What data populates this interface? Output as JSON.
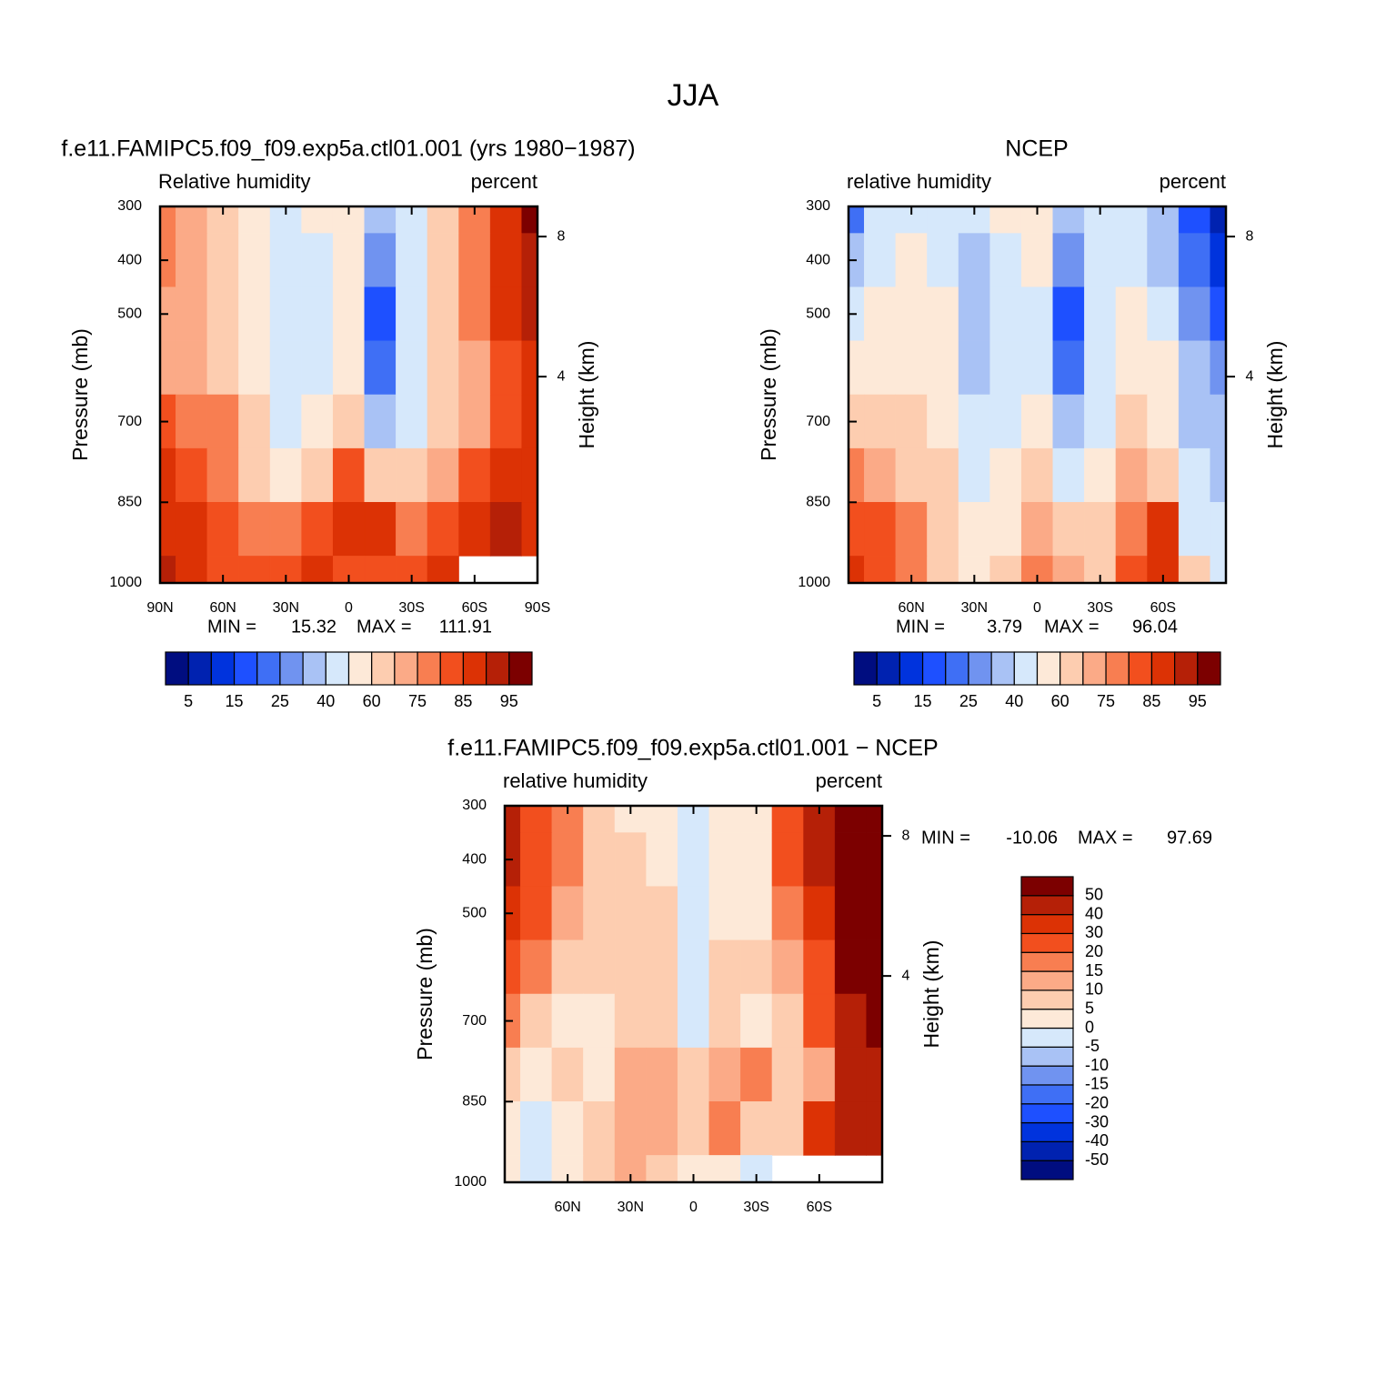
{
  "title": "JJA",
  "chart_data": [
    {
      "type": "contour",
      "title": "f.e11.FAMIPC5.f09_f09.exp5a.ctl01.001 (yrs 1980−1987)",
      "left_label": "Relative humidity",
      "right_label": "percent",
      "ylabel": "Pressure (mb)",
      "y2label": "Height (km)",
      "x": [
        90,
        75,
        60,
        45,
        30,
        15,
        0,
        -15,
        -30,
        -45,
        -60,
        -75,
        -90
      ],
      "y": [
        300,
        400,
        500,
        600,
        700,
        800,
        900,
        1000
      ],
      "values": [
        [
          75,
          70,
          65,
          55,
          45,
          50,
          55,
          35,
          45,
          65,
          75,
          85,
          97
        ],
        [
          75,
          72,
          65,
          55,
          42,
          48,
          55,
          25,
          45,
          65,
          75,
          85,
          92
        ],
        [
          72,
          70,
          65,
          55,
          42,
          45,
          55,
          18,
          40,
          65,
          75,
          85,
          90
        ],
        [
          72,
          70,
          68,
          58,
          45,
          45,
          55,
          22,
          40,
          62,
          72,
          82,
          88
        ],
        [
          80,
          75,
          75,
          62,
          48,
          50,
          65,
          35,
          45,
          60,
          72,
          80,
          88
        ],
        [
          85,
          80,
          78,
          68,
          58,
          62,
          80,
          65,
          60,
          70,
          80,
          85,
          88
        ],
        [
          88,
          85,
          82,
          75,
          75,
          80,
          88,
          85,
          78,
          80,
          88,
          92,
          88
        ],
        [
          90,
          85,
          80,
          80,
          82,
          85,
          82,
          80,
          82,
          85,
          null,
          null,
          null
        ]
      ],
      "xlim": [
        90,
        -90
      ],
      "ylim": [
        1000,
        300
      ],
      "xticks": [
        {
          "value": 90,
          "label": "90N"
        },
        {
          "value": 60,
          "label": "60N"
        },
        {
          "value": 30,
          "label": "30N"
        },
        0,
        {
          "value": -30,
          "label": "30S"
        },
        {
          "value": -60,
          "label": "60S"
        },
        {
          "value": -90,
          "label": "90S"
        }
      ],
      "yticks": [
        300,
        400,
        500,
        700,
        850,
        1000
      ],
      "y2ticks": [
        8,
        4
      ],
      "stats": [
        {
          "label": "MIN =",
          "value": 15.32
        },
        {
          "label": "MAX =",
          "value": 111.91
        }
      ],
      "colorbar": {
        "orientation": "horizontal",
        "levels": [
          5,
          10,
          15,
          20,
          25,
          30,
          40,
          50,
          60,
          70,
          75,
          80,
          85,
          90,
          95
        ],
        "label_stride": 2,
        "colors": [
          "#000d80",
          "#0022b0",
          "#0033dd",
          "#1e50ff",
          "#3f6ff5",
          "#7093f0",
          "#a9c2f5",
          "#d6e8fb",
          "#fde9d8",
          "#fdcdb0",
          "#fbaa87",
          "#f87e51",
          "#f24f1e",
          "#dc3205",
          "#b52007",
          "#7c0000"
        ]
      }
    },
    {
      "type": "contour",
      "title": "NCEP",
      "left_label": "relative humidity",
      "right_label": "percent",
      "ylabel": "Pressure (mb)",
      "y2label": "Height (km)",
      "x": [
        90,
        75,
        60,
        45,
        30,
        15,
        0,
        -15,
        -30,
        -45,
        -60,
        -75,
        -90
      ],
      "y": [
        300,
        400,
        500,
        600,
        700,
        800,
        900,
        1000
      ],
      "values": [
        [
          20,
          40,
          45,
          45,
          45,
          50,
          55,
          30,
          45,
          45,
          30,
          15,
          8
        ],
        [
          30,
          45,
          50,
          45,
          35,
          45,
          50,
          25,
          45,
          45,
          35,
          20,
          10
        ],
        [
          45,
          50,
          55,
          50,
          35,
          45,
          45,
          18,
          45,
          50,
          40,
          25,
          15
        ],
        [
          55,
          55,
          55,
          50,
          35,
          40,
          45,
          22,
          40,
          55,
          50,
          30,
          25
        ],
        [
          65,
          60,
          60,
          55,
          40,
          40,
          55,
          30,
          45,
          60,
          55,
          35,
          30
        ],
        [
          75,
          70,
          65,
          60,
          45,
          50,
          65,
          45,
          55,
          70,
          65,
          40,
          35
        ],
        [
          80,
          80,
          75,
          60,
          50,
          55,
          70,
          65,
          60,
          75,
          85,
          45,
          40
        ],
        [
          85,
          80,
          75,
          60,
          55,
          60,
          75,
          70,
          60,
          80,
          88,
          60,
          40
        ]
      ],
      "xlim": [
        90,
        -90
      ],
      "ylim": [
        1000,
        300
      ],
      "xticks": [
        {
          "value": 60,
          "label": "60N"
        },
        {
          "value": 30,
          "label": "30N"
        },
        0,
        {
          "value": -30,
          "label": "30S"
        },
        {
          "value": -60,
          "label": "60S"
        }
      ],
      "yticks": [
        300,
        400,
        500,
        700,
        850,
        1000
      ],
      "y2ticks": [
        8,
        4
      ],
      "stats": [
        {
          "label": "MIN =",
          "value": 3.79
        },
        {
          "label": "MAX =",
          "value": 96.04
        }
      ],
      "colorbar": {
        "orientation": "horizontal",
        "levels": [
          5,
          10,
          15,
          20,
          25,
          30,
          40,
          50,
          60,
          70,
          75,
          80,
          85,
          90,
          95
        ],
        "label_stride": 2,
        "colors": [
          "#000d80",
          "#0022b0",
          "#0033dd",
          "#1e50ff",
          "#3f6ff5",
          "#7093f0",
          "#a9c2f5",
          "#d6e8fb",
          "#fde9d8",
          "#fdcdb0",
          "#fbaa87",
          "#f87e51",
          "#f24f1e",
          "#dc3205",
          "#b52007",
          "#7c0000"
        ]
      }
    },
    {
      "type": "contour",
      "title": "f.e11.FAMIPC5.f09_f09.exp5a.ctl01.001 − NCEP",
      "left_label": "relative humidity",
      "right_label": "percent",
      "ylabel": "Pressure (mb)",
      "y2label": "Height (km)",
      "x": [
        90,
        75,
        60,
        45,
        30,
        15,
        0,
        -15,
        -30,
        -45,
        -60,
        -75,
        -90
      ],
      "y": [
        300,
        400,
        500,
        600,
        700,
        800,
        900,
        1000
      ],
      "values": [
        [
          45,
          25,
          15,
          8,
          3,
          2,
          -3,
          2,
          3,
          20,
          45,
          70,
          90
        ],
        [
          40,
          25,
          15,
          8,
          5,
          3,
          -2,
          0,
          3,
          20,
          40,
          65,
          85
        ],
        [
          30,
          20,
          10,
          6,
          8,
          5,
          -2,
          3,
          2,
          15,
          35,
          60,
          75
        ],
        [
          20,
          15,
          8,
          5,
          8,
          6,
          -2,
          5,
          5,
          10,
          22,
          50,
          65
        ],
        [
          15,
          6,
          3,
          2,
          6,
          8,
          -1,
          5,
          4,
          8,
          20,
          45,
          55
        ],
        [
          5,
          3,
          8,
          4,
          10,
          12,
          5,
          10,
          15,
          8,
          12,
          45,
          40
        ],
        [
          2,
          -3,
          4,
          8,
          12,
          10,
          8,
          15,
          5,
          6,
          30,
          40,
          40
        ],
        [
          2,
          -3,
          2,
          6,
          10,
          8,
          3,
          0,
          -2,
          null,
          null,
          null,
          null
        ]
      ],
      "xlim": [
        90,
        -90
      ],
      "ylim": [
        1000,
        300
      ],
      "xticks": [
        {
          "value": 60,
          "label": "60N"
        },
        {
          "value": 30,
          "label": "30N"
        },
        0,
        {
          "value": -30,
          "label": "30S"
        },
        {
          "value": -60,
          "label": "60S"
        }
      ],
      "yticks": [
        300,
        400,
        500,
        700,
        850,
        1000
      ],
      "y2ticks": [
        8,
        4
      ],
      "stats": [
        {
          "label": "MIN =",
          "value": -10.06
        },
        {
          "label": "MAX =",
          "value": 97.69
        }
      ],
      "colorbar": {
        "orientation": "vertical",
        "levels": [
          -50,
          -40,
          -30,
          -20,
          -15,
          -10,
          -5,
          0,
          5,
          10,
          15,
          20,
          30,
          40,
          50
        ],
        "label_stride": 1,
        "colors": [
          "#000d80",
          "#0022b0",
          "#0033dd",
          "#1e50ff",
          "#3f6ff5",
          "#7093f0",
          "#a9c2f5",
          "#d6e8fb",
          "#fde9d8",
          "#fdcdb0",
          "#fbaa87",
          "#f87e51",
          "#f24f1e",
          "#dc3205",
          "#b52007",
          "#7c0000"
        ]
      }
    }
  ]
}
